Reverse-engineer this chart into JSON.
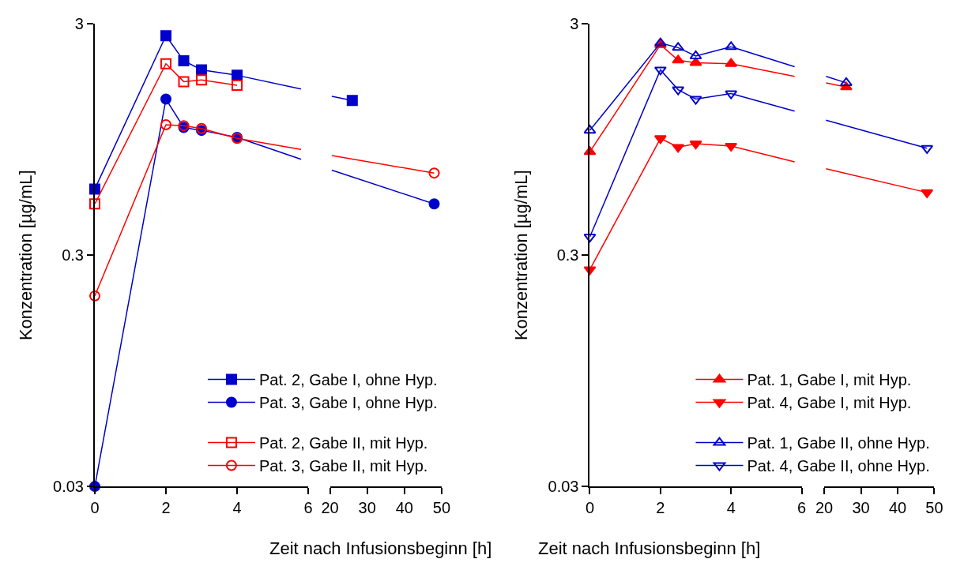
{
  "chart_data": [
    {
      "type": "line",
      "xlabel": "Zeit nach Infusionsbeginn [h]",
      "ylabel": "Konzentration [µg/mL]",
      "log": "y",
      "ylim": [
        0.03,
        3
      ],
      "yticks": [
        0.03,
        0.3,
        3
      ],
      "xlim": [
        0,
        6
      ],
      "xticks": [
        0,
        2,
        4,
        6
      ],
      "legend": "bottom right",
      "line_style": "solid",
      "series": [
        {
          "name": "Pat. 2, Gabe I, ohne Hyp.",
          "color": "#0000cc",
          "marker": "square",
          "x": [
            0,
            2,
            2.5,
            3,
            4
          ],
          "values": [
            0.58,
            2.67,
            2.08,
            1.9,
            1.8
          ]
        },
        {
          "name": "Pat. 3, Gabe I, ohne Hyp.",
          "color": "#0000cc",
          "marker": "circle",
          "x": [
            0,
            2,
            2.5,
            3,
            4
          ],
          "values": [
            0.03,
            1.42,
            1.07,
            1.04,
            0.97
          ]
        },
        {
          "name": "Pat. 2, Gabe II, mit Hyp.",
          "color": "#ff0000",
          "marker": "square-open",
          "x": [
            0,
            2,
            2.5,
            3,
            4
          ],
          "values": [
            0.5,
            2.02,
            1.69,
            1.72,
            1.63
          ]
        },
        {
          "name": "Pat. 3, Gabe II, mit Hyp.",
          "color": "#ff0000",
          "marker": "circle-open",
          "x": [
            0,
            2,
            2.5,
            3,
            4
          ],
          "values": [
            0.2,
            1.1,
            1.09,
            1.06,
            0.96
          ]
        },
        {
          "color": "#0000cc",
          "marker": "none",
          "x": [
            4,
            5.8
          ],
          "values": [
            1.8,
            1.57
          ]
        },
        {
          "color": "#0000cc",
          "marker": "none",
          "x": [
            4,
            5.8
          ],
          "values": [
            0.97,
            0.78
          ]
        },
        {
          "color": "#ff0000",
          "marker": "none",
          "x": [
            4,
            5.8
          ],
          "values": [
            0.96,
            0.86
          ]
        }
      ]
    },
    {
      "type": "line",
      "log": "y",
      "ylim": [
        0.03,
        3
      ],
      "xlim": [
        20,
        50
      ],
      "xticks": [
        20,
        30,
        40,
        50
      ],
      "tick_labels": "x",
      "line_style": "solid",
      "series": [
        {
          "color": "#0000cc",
          "marker": "none",
          "x": [
            20.5,
            26
          ],
          "values": [
            1.46,
            1.4
          ]
        },
        {
          "color": "#0000cc",
          "marker": "none",
          "x": [
            20.5,
            48
          ],
          "values": [
            0.7,
            0.5
          ]
        },
        {
          "color": "#ff0000",
          "marker": "none",
          "x": [
            20.5,
            48
          ],
          "values": [
            0.81,
            0.68
          ]
        },
        {
          "color": "#0000cc",
          "marker": "square",
          "x": [
            26
          ],
          "values": [
            1.4
          ]
        },
        {
          "color": "#0000cc",
          "marker": "circle",
          "x": [
            48
          ],
          "values": [
            0.5
          ]
        },
        {
          "color": "#ff0000",
          "marker": "circle-open",
          "x": [
            48
          ],
          "values": [
            0.68
          ]
        }
      ]
    },
    {
      "type": "line",
      "xlabel": "Zeit nach Infusionsbeginn [h]",
      "ylabel": "Konzentration [µg/mL]",
      "log": "y",
      "ylim": [
        0.03,
        3
      ],
      "yticks": [
        0.03,
        0.3,
        3
      ],
      "xlim": [
        0,
        6
      ],
      "xticks": [
        0,
        2,
        4,
        6
      ],
      "legend": "bottom right",
      "line_style": "solid",
      "series": [
        {
          "name": "Pat. 1, Gabe I, mit Hyp.",
          "color": "#ff0000",
          "marker": "triangle",
          "x": [
            0,
            2,
            2.5,
            3,
            4
          ],
          "values": [
            0.84,
            2.44,
            2.09,
            2.04,
            2.02
          ]
        },
        {
          "name": "Pat. 4, Gabe I, mit Hyp.",
          "color": "#ff0000",
          "marker": "triangle-down",
          "x": [
            0,
            2,
            2.5,
            3,
            4
          ],
          "values": [
            0.26,
            0.96,
            0.88,
            0.91,
            0.89
          ]
        },
        {
          "name": "Pat. 1, Gabe II, ohne Hyp.",
          "color": "#0000cc",
          "marker": "triangle-open",
          "x": [
            0,
            2,
            2.5,
            3,
            4
          ],
          "values": [
            1.04,
            2.48,
            2.37,
            2.18,
            2.39
          ]
        },
        {
          "name": "Pat. 4, Gabe II, ohne Hyp.",
          "color": "#0000cc",
          "marker": "triangle-down-open",
          "x": [
            0,
            2,
            2.5,
            3,
            4
          ],
          "values": [
            0.36,
            1.9,
            1.56,
            1.42,
            1.5
          ]
        },
        {
          "color": "#ff0000",
          "marker": "none",
          "x": [
            4,
            5.8
          ],
          "values": [
            2.02,
            1.78
          ]
        },
        {
          "color": "#ff0000",
          "marker": "none",
          "x": [
            4,
            5.8
          ],
          "values": [
            0.89,
            0.76
          ]
        },
        {
          "color": "#0000cc",
          "marker": "none",
          "x": [
            4,
            5.8
          ],
          "values": [
            2.39,
            1.96
          ]
        },
        {
          "color": "#0000cc",
          "marker": "none",
          "x": [
            4,
            5.8
          ],
          "values": [
            1.5,
            1.26
          ]
        }
      ]
    },
    {
      "type": "line",
      "log": "y",
      "ylim": [
        0.03,
        3
      ],
      "xlim": [
        20,
        50
      ],
      "xticks": [
        20,
        30,
        40,
        50
      ],
      "tick_labels": "x",
      "line_style": "solid",
      "series": [
        {
          "color": "#ff0000",
          "marker": "none",
          "x": [
            20.5,
            26
          ],
          "values": [
            1.67,
            1.6
          ]
        },
        {
          "color": "#ff0000",
          "marker": "none",
          "x": [
            20.5,
            48
          ],
          "values": [
            0.71,
            0.56
          ]
        },
        {
          "color": "#0000cc",
          "marker": "none",
          "x": [
            20.5,
            26
          ],
          "values": [
            1.78,
            1.67
          ]
        },
        {
          "color": "#0000cc",
          "marker": "none",
          "x": [
            20.5,
            48
          ],
          "values": [
            1.15,
            0.87
          ]
        },
        {
          "color": "#ff0000",
          "marker": "triangle",
          "x": [
            26
          ],
          "values": [
            1.6
          ]
        },
        {
          "color": "#ff0000",
          "marker": "triangle-down",
          "x": [
            48
          ],
          "values": [
            0.56
          ]
        },
        {
          "color": "#0000cc",
          "marker": "triangle-open",
          "x": [
            26
          ],
          "values": [
            1.67
          ]
        },
        {
          "color": "#0000cc",
          "marker": "triangle-down-open",
          "x": [
            48
          ],
          "values": [
            0.87
          ]
        }
      ]
    }
  ]
}
